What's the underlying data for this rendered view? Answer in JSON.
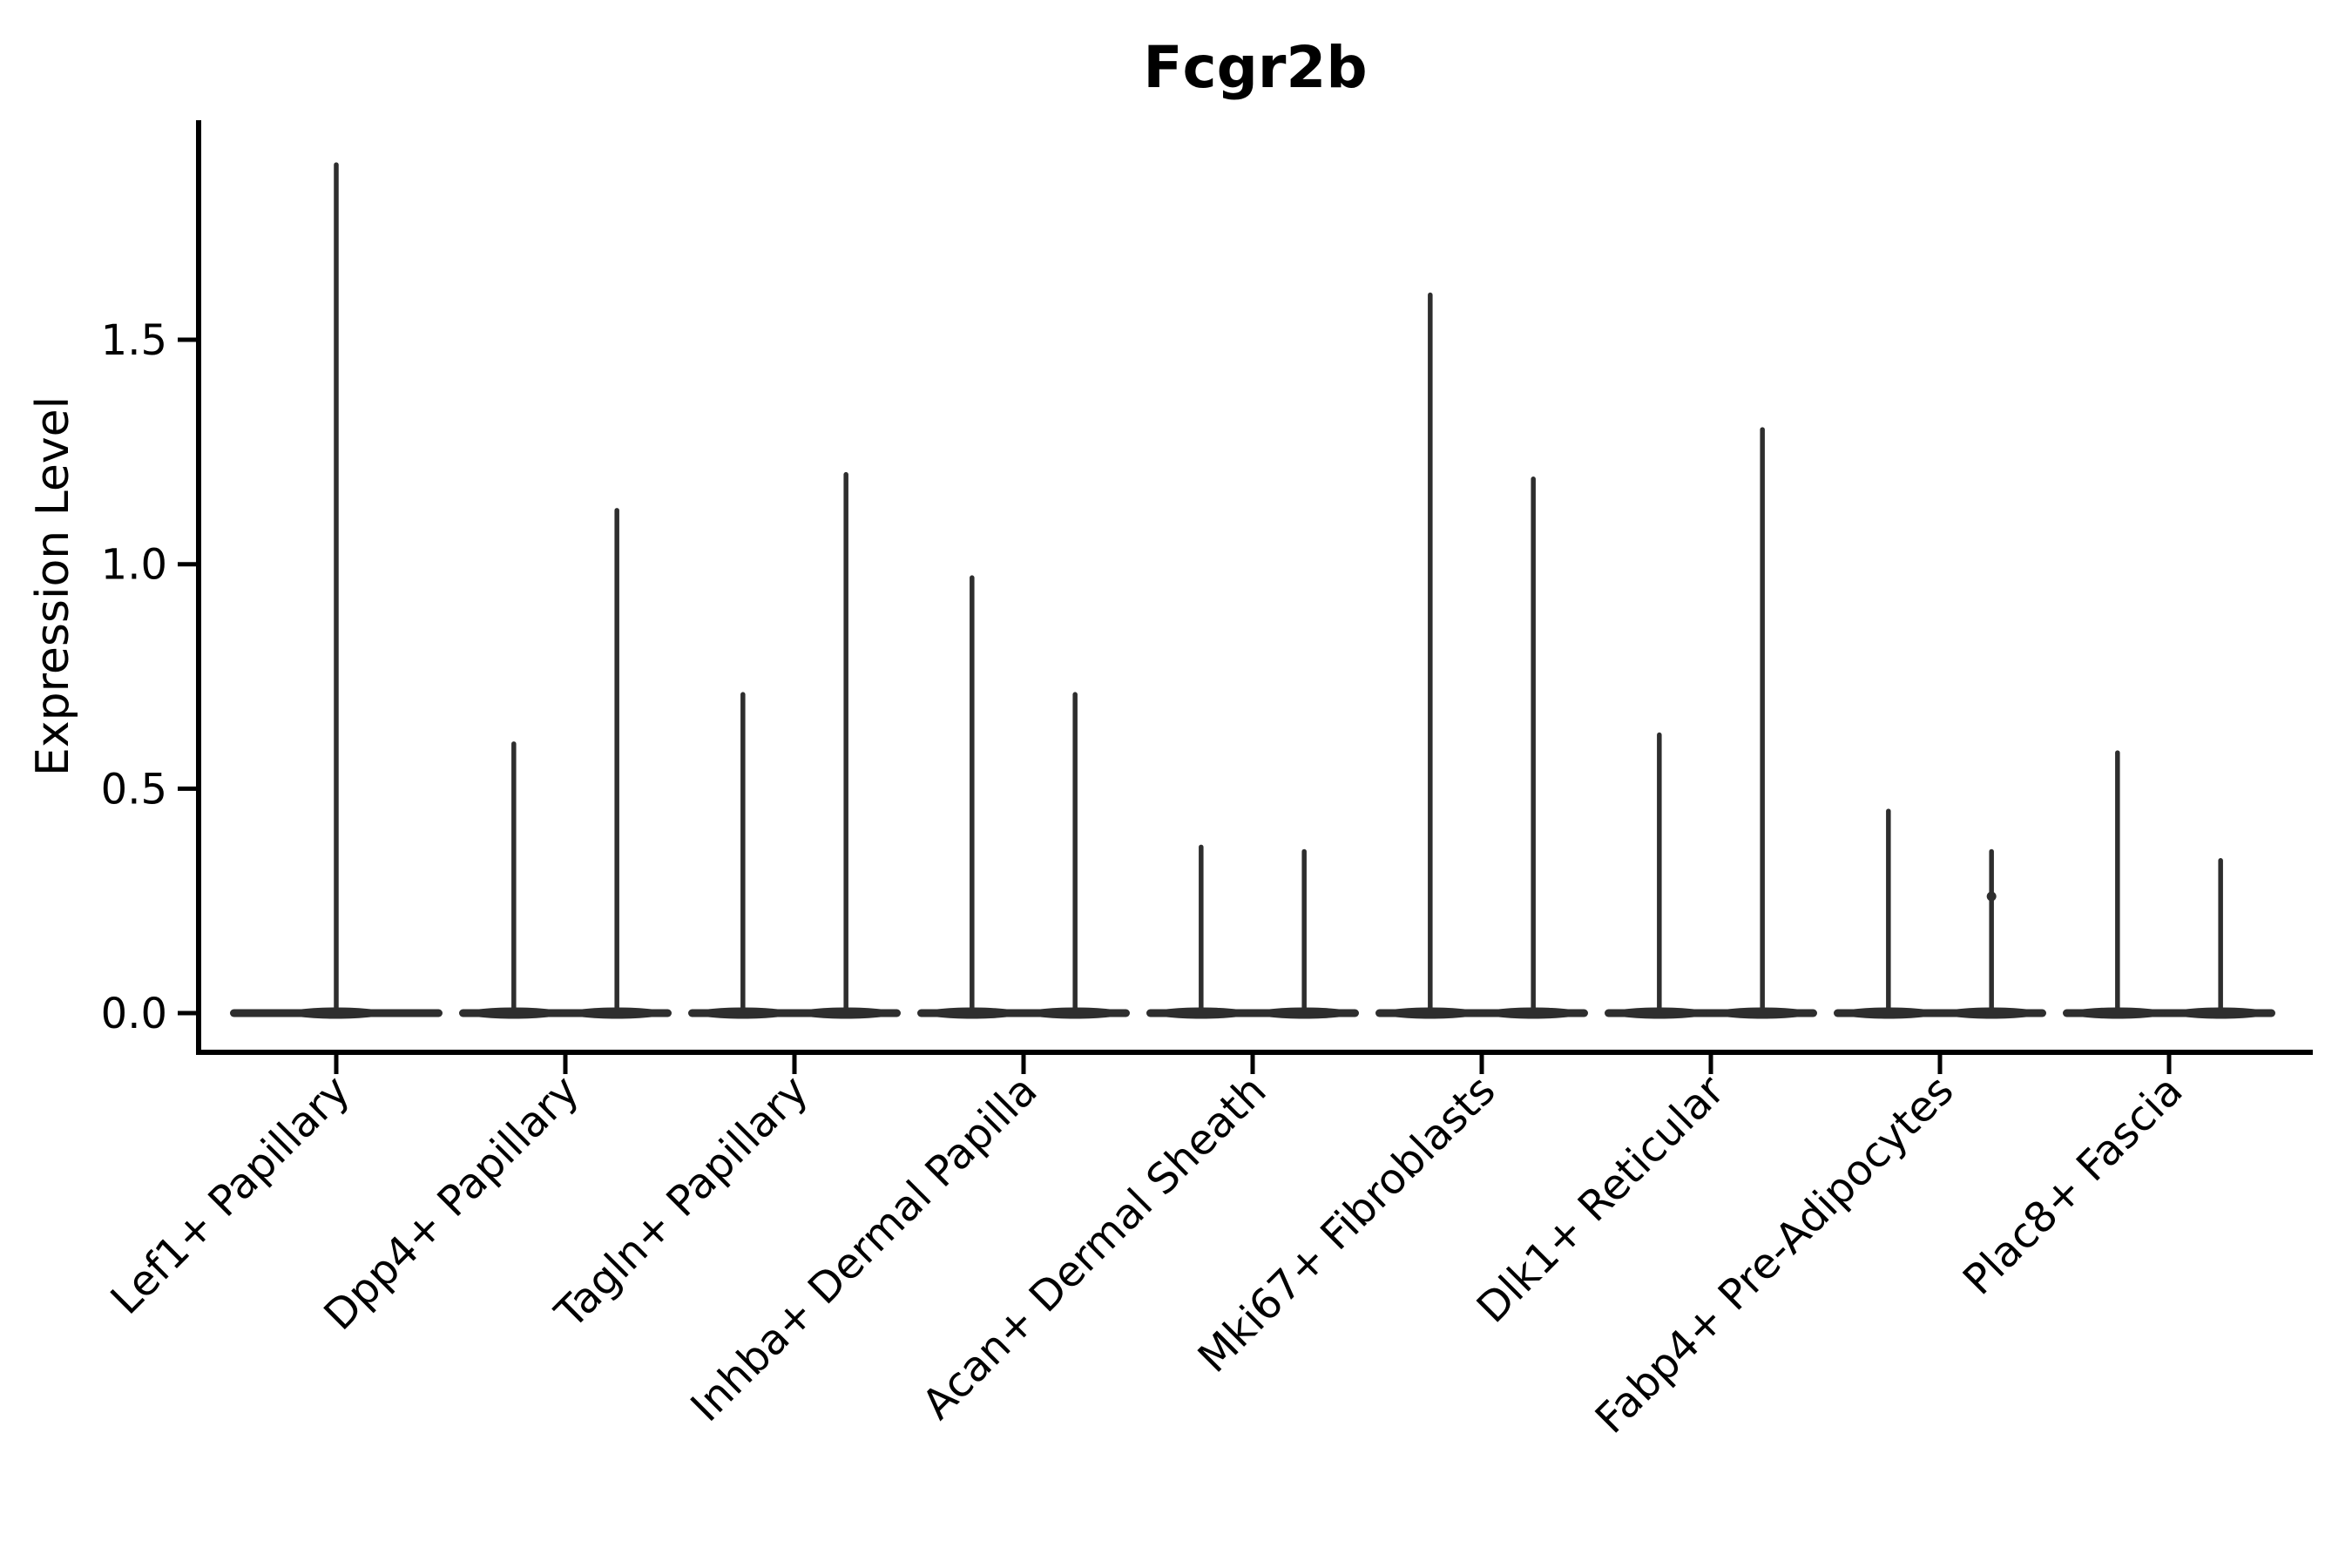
{
  "chart_data": {
    "type": "violin",
    "title": "Fcgr2b",
    "ylabel": "Expression Level",
    "xlabel": "",
    "grid": false,
    "legend": null,
    "spines": [
      "left",
      "bottom"
    ],
    "ylim": [
      -0.09,
      2.0
    ],
    "yticks": [
      {
        "value": 0.0,
        "label": "0.0"
      },
      {
        "value": 0.5,
        "label": "0.5"
      },
      {
        "value": 1.0,
        "label": "1.0"
      },
      {
        "value": 1.5,
        "label": "1.5"
      }
    ],
    "categories": [
      "Lef1+ Papillary",
      "Dpp4+ Papillary",
      "Tagln+ Papillary",
      "Inhba+ Dermal Papilla",
      "Acan+ Dermal Sheath",
      "Mki67+ Fibroblasts",
      "Dlk1+ Reticular",
      "Fabp4+ Pre-Adipocytes",
      "Plac8+ Fascia"
    ],
    "violins": [
      {
        "category": "Lef1+ Papillary",
        "baseline": 0.0,
        "spikes": [
          {
            "pos": 0.0,
            "max": 1.89
          }
        ]
      },
      {
        "category": "Dpp4+ Papillary",
        "baseline": 0.0,
        "spikes": [
          {
            "pos": -0.225,
            "max": 0.6
          },
          {
            "pos": 0.225,
            "max": 1.12
          }
        ]
      },
      {
        "category": "Tagln+ Papillary",
        "baseline": 0.0,
        "spikes": [
          {
            "pos": -0.225,
            "max": 0.71
          },
          {
            "pos": 0.225,
            "max": 1.2
          }
        ]
      },
      {
        "category": "Inhba+ Dermal Papilla",
        "baseline": 0.0,
        "spikes": [
          {
            "pos": -0.225,
            "max": 0.97
          },
          {
            "pos": 0.225,
            "max": 0.71
          }
        ]
      },
      {
        "category": "Acan+ Dermal Sheath",
        "baseline": 0.0,
        "spikes": [
          {
            "pos": -0.225,
            "max": 0.37
          },
          {
            "pos": 0.225,
            "max": 0.36
          }
        ]
      },
      {
        "category": "Mki67+ Fibroblasts",
        "baseline": 0.0,
        "spikes": [
          {
            "pos": -0.225,
            "max": 1.6
          },
          {
            "pos": 0.225,
            "max": 1.19
          }
        ]
      },
      {
        "category": "Dlk1+ Reticular",
        "baseline": 0.0,
        "spikes": [
          {
            "pos": -0.225,
            "max": 0.62
          },
          {
            "pos": 0.225,
            "max": 1.3
          }
        ]
      },
      {
        "category": "Fabp4+ Pre-Adipocytes",
        "baseline": 0.0,
        "spikes": [
          {
            "pos": -0.225,
            "max": 0.45
          },
          {
            "pos": 0.225,
            "max": 0.36,
            "dots": [
              0.26
            ]
          }
        ]
      },
      {
        "category": "Plac8+ Fascia",
        "baseline": 0.0,
        "spikes": [
          {
            "pos": -0.225,
            "max": 0.58
          },
          {
            "pos": 0.225,
            "max": 0.34
          }
        ]
      }
    ],
    "colors": {
      "violin": "#2e2e2e",
      "axis": "#000000",
      "text": "#000000",
      "background": "#ffffff"
    }
  }
}
